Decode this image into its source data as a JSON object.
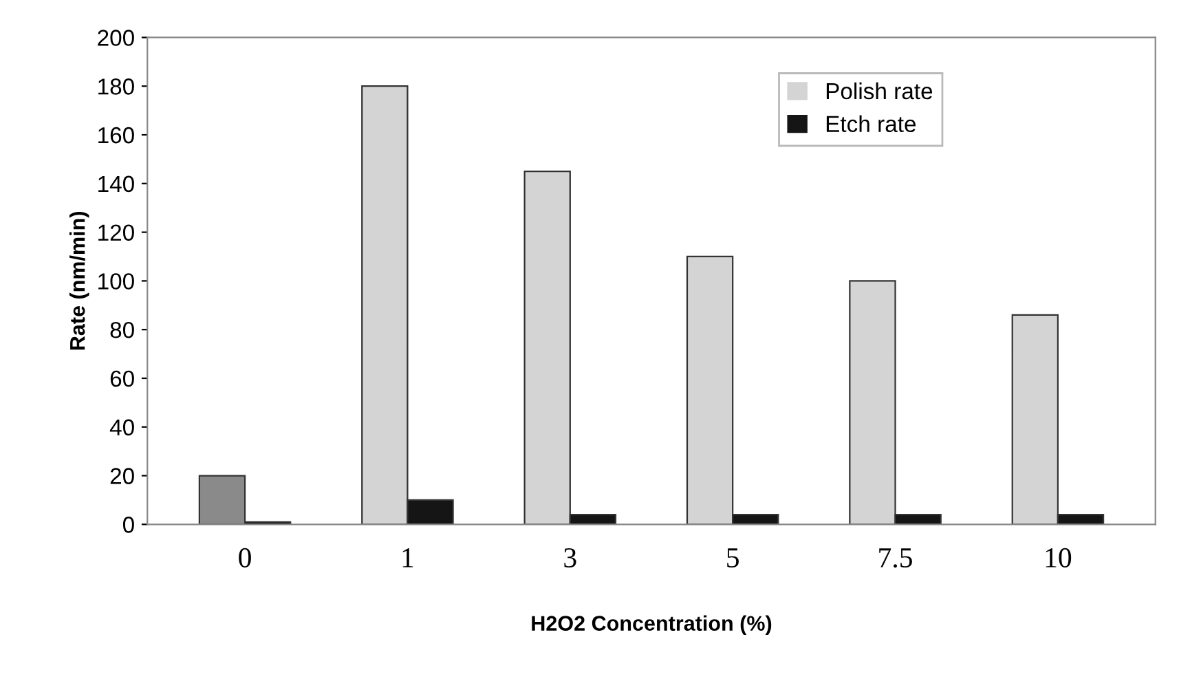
{
  "chart_data": {
    "type": "bar",
    "xlabel": "H2O2 Concentration (%)",
    "ylabel": "Rate (nm/min)",
    "categories": [
      "0",
      "1",
      "3",
      "5",
      "7.5",
      "10"
    ],
    "series": [
      {
        "name": "Polish rate",
        "color": "#d4d4d4",
        "colors": [
          "#8a8a8a",
          "#d4d4d4",
          "#d4d4d4",
          "#d4d4d4",
          "#d4d4d4",
          "#d4d4d4"
        ],
        "values": [
          20,
          180,
          145,
          110,
          100,
          86
        ]
      },
      {
        "name": "Etch rate",
        "color": "#151515",
        "values": [
          1,
          10,
          4,
          4,
          4,
          4
        ]
      }
    ],
    "ylim": [
      0,
      200
    ],
    "yticks": [
      0,
      20,
      40,
      60,
      80,
      100,
      120,
      140,
      160,
      180,
      200
    ],
    "grid": false,
    "legend": "top right"
  }
}
